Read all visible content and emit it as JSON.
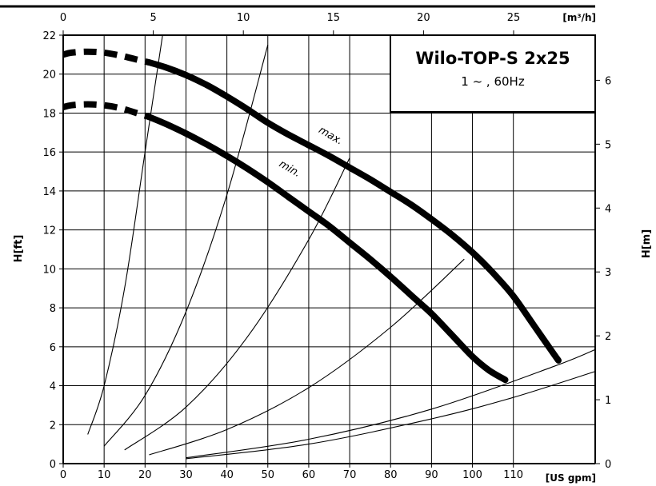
{
  "chart_data": {
    "type": "line",
    "title": "Wilo-TOP-S 2x25",
    "subtitle": "1 ~ , 60Hz",
    "xlabel": "[US gpm]",
    "x2label": "[m³/h]",
    "ylabel": "H[ft]",
    "y2label": "H[m]",
    "xlim": [
      0,
      130
    ],
    "ylim": [
      0,
      22
    ],
    "x2lim": [
      0,
      29.53
    ],
    "y2lim": [
      0,
      6.706
    ],
    "x_ticks": [
      0,
      10,
      20,
      30,
      40,
      50,
      60,
      70,
      80,
      90,
      100,
      110
    ],
    "x_tick_labels": [
      "0",
      "10",
      "20",
      "30",
      "40",
      "50",
      "60",
      "70",
      "80",
      "90",
      "100",
      "110"
    ],
    "y_ticks": [
      0,
      2,
      4,
      6,
      8,
      10,
      12,
      14,
      16,
      18,
      20,
      22
    ],
    "y_tick_labels": [
      "0",
      "2",
      "4",
      "6",
      "8",
      "10",
      "12",
      "14",
      "16",
      "18",
      "20",
      "22"
    ],
    "x2_ticks": [
      0,
      5,
      10,
      15,
      20,
      25
    ],
    "x2_tick_labels": [
      "0",
      "5",
      "10",
      "15",
      "20",
      "25"
    ],
    "y2_ticks": [
      0,
      1,
      2,
      3,
      4,
      5,
      6
    ],
    "y2_tick_labels": [
      "0",
      "1",
      "2",
      "3",
      "4",
      "5",
      "6"
    ],
    "grid": true,
    "series": [
      {
        "name": "max.",
        "dashed_x": [
          0,
          2,
          6,
          10,
          14,
          18,
          21
        ],
        "dashed_y": [
          21.0,
          21.1,
          21.15,
          21.1,
          20.95,
          20.75,
          20.6
        ],
        "x": [
          21,
          25,
          30,
          35,
          40,
          45,
          50,
          55,
          60,
          65,
          70,
          75,
          80,
          85,
          90,
          95,
          100,
          105,
          110,
          115,
          120,
          121
        ],
        "y": [
          20.6,
          20.35,
          19.95,
          19.45,
          18.85,
          18.2,
          17.5,
          16.9,
          16.35,
          15.8,
          15.2,
          14.6,
          13.95,
          13.3,
          12.55,
          11.75,
          10.85,
          9.8,
          8.6,
          7.1,
          5.6,
          5.3
        ]
      },
      {
        "name": "min.",
        "dashed_x": [
          0,
          2,
          6,
          10,
          14,
          18,
          21
        ],
        "dashed_y": [
          18.3,
          18.4,
          18.45,
          18.4,
          18.25,
          18.0,
          17.8
        ],
        "x": [
          21,
          25,
          30,
          35,
          40,
          45,
          50,
          55,
          60,
          65,
          70,
          75,
          80,
          85,
          90,
          95,
          100,
          104,
          108
        ],
        "y": [
          17.8,
          17.45,
          16.95,
          16.4,
          15.8,
          15.15,
          14.45,
          13.7,
          12.95,
          12.2,
          11.35,
          10.5,
          9.6,
          8.65,
          7.7,
          6.6,
          5.5,
          4.8,
          4.3
        ]
      }
    ],
    "system_curves": [
      {
        "x": [
          6,
          10,
          15,
          20,
          25
        ],
        "y": [
          1.5,
          4.0,
          9.0,
          16.0,
          23.0
        ]
      },
      {
        "x": [
          10,
          20,
          30,
          40,
          50
        ],
        "y": [
          0.9,
          3.5,
          7.8,
          13.8,
          21.5
        ]
      },
      {
        "x": [
          15,
          30,
          45,
          60,
          70
        ],
        "y": [
          0.7,
          2.9,
          6.5,
          11.5,
          15.7
        ]
      },
      {
        "x": [
          21,
          40,
          60,
          80,
          98
        ],
        "y": [
          0.45,
          1.75,
          3.9,
          7.0,
          10.5
        ]
      },
      {
        "x": [
          30,
          60,
          90,
          120,
          131
        ],
        "y": [
          0.3,
          1.25,
          2.8,
          5.0,
          5.95
        ]
      },
      {
        "x": [
          30,
          60,
          90,
          110,
          131
        ],
        "y": [
          0.25,
          1.0,
          2.3,
          3.4,
          4.8
        ]
      }
    ]
  }
}
